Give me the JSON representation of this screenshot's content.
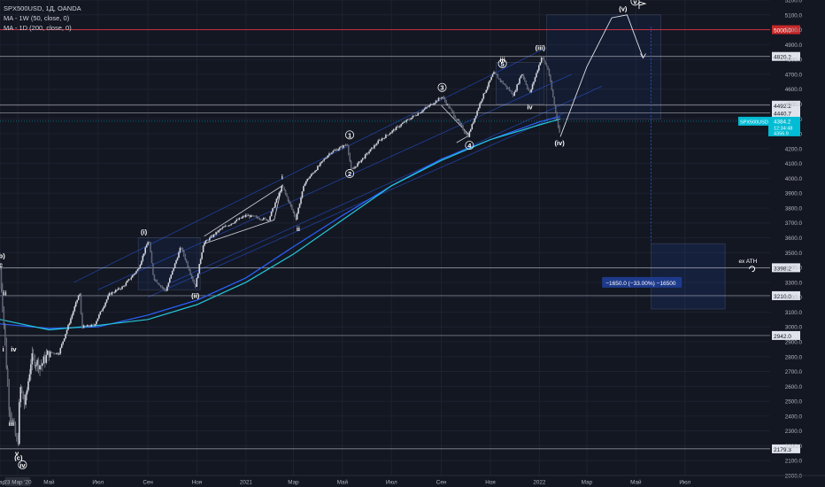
{
  "legend": {
    "symbol_line": "SPX500USD, 1Д, OANDA",
    "ma1": "MA - 1W (50, close, 0)",
    "ma2": "MA - 1D (200, close, 0)"
  },
  "colors": {
    "background": "#131722",
    "candle_up": "#d1d4dc",
    "candle_down": "#d1d4dc",
    "ma_weekly": "#2962ff",
    "ma_daily": "#26c6da",
    "channel": "#2962ff",
    "level": "#d1d4dc",
    "red_level": "#f23645",
    "price_tag": "#00bcd4",
    "text": "#d1d4dc"
  },
  "chart_data": {
    "type": "candlestick",
    "title": "SPX500USD, 1Д, OANDA",
    "x_axis": {
      "range": [
        "2020-03-01",
        "2022-10-15"
      ],
      "ticks": [
        {
          "date": "2020-03-01",
          "label": "Мар"
        },
        {
          "date": "2020-03-23",
          "label": "23 Мар '20"
        },
        {
          "date": "2020-05-01",
          "label": "Май"
        },
        {
          "date": "2020-07-01",
          "label": "Июл"
        },
        {
          "date": "2020-09-01",
          "label": "Сен"
        },
        {
          "date": "2020-11-01",
          "label": "Ноя"
        },
        {
          "date": "2021-01-01",
          "label": "2021"
        },
        {
          "date": "2021-03-01",
          "label": "Мар"
        },
        {
          "date": "2021-05-01",
          "label": "Май"
        },
        {
          "date": "2021-07-01",
          "label": "Июл"
        },
        {
          "date": "2021-09-01",
          "label": "Сен"
        },
        {
          "date": "2021-11-01",
          "label": "Ноя"
        },
        {
          "date": "2022-01-01",
          "label": "2022"
        },
        {
          "date": "2022-03-01",
          "label": "Мар"
        },
        {
          "date": "2022-05-01",
          "label": "Май"
        },
        {
          "date": "2022-07-01",
          "label": "Июл"
        }
      ]
    },
    "y_axis": {
      "range": [
        2000,
        5200
      ],
      "ticks": [
        2000,
        2100,
        2200,
        2300,
        2400,
        2500,
        2600,
        2700,
        2800,
        2900,
        3000,
        3100,
        3200,
        3300,
        3400,
        3500,
        3600,
        3700,
        3800,
        3900,
        4000,
        4100,
        4200,
        4300,
        4400,
        4500,
        4600,
        4700,
        4800,
        4900,
        5000,
        5100,
        5200
      ],
      "tick_labels": [
        "2000.0",
        "2100.0",
        "2200.0",
        "2300.0",
        "2400.0",
        "2500.0",
        "2600.0",
        "2700.0",
        "2800.0",
        "2900.0",
        "3000.0",
        "3100.0",
        "3200.0",
        "3300.0",
        "3400.0",
        "3500.0",
        "3600.0",
        "3700.0",
        "3800.0",
        "3900.0",
        "4000.0",
        "4100.0",
        "4200.0",
        "4300.0",
        "4400.0",
        "4500.0",
        "4600.0",
        "4700.0",
        "4800.0",
        "4900.0",
        "5000.0",
        "5100.0",
        "5200.0"
      ]
    },
    "price_path": [
      [
        "2020-03-01",
        3390
      ],
      [
        "2020-03-05",
        3100
      ],
      [
        "2020-03-09",
        2740
      ],
      [
        "2020-03-12",
        2480
      ],
      [
        "2020-03-16",
        2380
      ],
      [
        "2020-03-23",
        2190
      ],
      [
        "2020-03-26",
        2600
      ],
      [
        "2020-04-01",
        2470
      ],
      [
        "2020-04-09",
        2790
      ],
      [
        "2020-04-21",
        2740
      ],
      [
        "2020-05-01",
        2830
      ],
      [
        "2020-05-13",
        2820
      ],
      [
        "2020-06-08",
        3230
      ],
      [
        "2020-06-11",
        3000
      ],
      [
        "2020-06-26",
        3010
      ],
      [
        "2020-07-15",
        3220
      ],
      [
        "2020-08-01",
        3270
      ],
      [
        "2020-08-20",
        3390
      ],
      [
        "2020-09-02",
        3590
      ],
      [
        "2020-09-08",
        3330
      ],
      [
        "2020-09-23",
        3240
      ],
      [
        "2020-10-12",
        3540
      ],
      [
        "2020-10-30",
        3270
      ],
      [
        "2020-11-09",
        3560
      ],
      [
        "2020-12-01",
        3660
      ],
      [
        "2021-01-01",
        3750
      ],
      [
        "2021-01-29",
        3720
      ],
      [
        "2021-02-15",
        3950
      ],
      [
        "2021-03-04",
        3730
      ],
      [
        "2021-03-15",
        3970
      ],
      [
        "2021-04-15",
        4170
      ],
      [
        "2021-05-07",
        4230
      ],
      [
        "2021-05-12",
        4050
      ],
      [
        "2021-06-15",
        4250
      ],
      [
        "2021-07-15",
        4370
      ],
      [
        "2021-08-15",
        4480
      ],
      [
        "2021-09-02",
        4550
      ],
      [
        "2021-10-04",
        4280
      ],
      [
        "2021-10-20",
        4520
      ],
      [
        "2021-11-05",
        4710
      ],
      [
        "2021-11-30",
        4560
      ],
      [
        "2021-12-10",
        4710
      ],
      [
        "2021-12-20",
        4570
      ],
      [
        "2022-01-04",
        4820
      ],
      [
        "2022-01-12",
        4730
      ],
      [
        "2022-01-20",
        4480
      ],
      [
        "2022-01-27",
        4280
      ]
    ],
    "ma_weekly_50": [
      [
        "2020-03-01",
        3020
      ],
      [
        "2020-05-01",
        2990
      ],
      [
        "2020-07-01",
        3000
      ],
      [
        "2020-09-01",
        3080
      ],
      [
        "2020-11-01",
        3180
      ],
      [
        "2021-01-01",
        3330
      ],
      [
        "2021-03-01",
        3540
      ],
      [
        "2021-05-01",
        3750
      ],
      [
        "2021-07-01",
        3950
      ],
      [
        "2021-09-01",
        4130
      ],
      [
        "2021-11-01",
        4260
      ],
      [
        "2022-01-01",
        4380
      ],
      [
        "2022-01-27",
        4415
      ]
    ],
    "ma_daily_200": [
      [
        "2020-03-01",
        3050
      ],
      [
        "2020-05-01",
        2980
      ],
      [
        "2020-07-01",
        3010
      ],
      [
        "2020-09-01",
        3050
      ],
      [
        "2020-11-01",
        3150
      ],
      [
        "2021-01-01",
        3300
      ],
      [
        "2021-03-01",
        3490
      ],
      [
        "2021-05-01",
        3720
      ],
      [
        "2021-07-01",
        3950
      ],
      [
        "2021-09-01",
        4120
      ],
      [
        "2021-11-01",
        4260
      ],
      [
        "2022-01-01",
        4360
      ],
      [
        "2022-01-27",
        4400
      ]
    ],
    "projection": [
      [
        "2022-01-27",
        4280
      ],
      [
        "2022-03-01",
        4750
      ],
      [
        "2022-04-01",
        5080
      ],
      [
        "2022-04-20",
        5100
      ],
      [
        "2022-05-10",
        4810
      ]
    ],
    "horizontal_levels": [
      {
        "price": 5000.0,
        "label": "5000.0",
        "style": "red"
      },
      {
        "price": 4820.2,
        "label": "4820.2",
        "style": "plain"
      },
      {
        "price": 4492.2,
        "label": "4492.2",
        "style": "plain"
      },
      {
        "price": 4440.7,
        "label": "4440.7",
        "style": "plain"
      },
      {
        "price": 3398.2,
        "label": "3398.2",
        "style": "plain"
      },
      {
        "price": 3210.0,
        "label": "3210.0",
        "style": "plain"
      },
      {
        "price": 2942.0,
        "label": "2942.0",
        "style": "plain"
      },
      {
        "price": 2179.3,
        "label": "2179.3",
        "style": "plain"
      }
    ],
    "current_price": {
      "symbol": "SPX500USD",
      "price": "4384.2",
      "countdown": "12:34:48",
      "sub": "4356.9"
    },
    "measure_box": {
      "label": "−1650.0 (−33.00%) −16500",
      "ath_label": "ex ATH",
      "from": 5050,
      "to": 3398.2
    },
    "wave_labels": [
      {
        "text": "(b)",
        "date": "2020-03-02",
        "price": 3470
      },
      {
        "text": "c",
        "date": "2020-03-02",
        "price": 3410
      },
      {
        "text": "ii",
        "date": "2020-03-07",
        "price": 3220
      },
      {
        "text": "i",
        "date": "2020-03-05",
        "price": 2840
      },
      {
        "text": "iv",
        "date": "2020-03-18",
        "price": 2840
      },
      {
        "text": "iii",
        "date": "2020-03-15",
        "price": 2340
      },
      {
        "text": "v",
        "date": "2020-03-22",
        "price": 2140
      },
      {
        "text": "(c)",
        "date": "2020-03-24",
        "price": 2110
      },
      {
        "text": "iv",
        "date": "2020-03-29",
        "price": 2060
      },
      {
        "text": "(i)",
        "date": "2020-08-27",
        "price": 3630
      },
      {
        "text": "(ii)",
        "date": "2020-10-30",
        "price": 3200
      },
      {
        "text": "i",
        "date": "2021-02-15",
        "price": 4000
      },
      {
        "text": "ii",
        "date": "2021-03-07",
        "price": 3650
      },
      {
        "text": "1",
        "date": "2021-05-10",
        "price": 4280
      },
      {
        "text": "2",
        "date": "2021-05-10",
        "price": 4020
      },
      {
        "text": "3",
        "date": "2021-09-02",
        "price": 4600
      },
      {
        "text": "4",
        "date": "2021-10-06",
        "price": 4210
      },
      {
        "text": "5",
        "date": "2021-11-16",
        "price": 4760
      },
      {
        "text": "iii",
        "date": "2021-11-16",
        "price": 4790
      },
      {
        "text": "iv",
        "date": "2021-12-20",
        "price": 4470
      },
      {
        "text": "(iii)",
        "date": "2022-01-02",
        "price": 4870
      },
      {
        "text": "(iv)",
        "date": "2022-01-26",
        "price": 4230
      },
      {
        "text": "(v)",
        "date": "2022-04-15",
        "price": 5130
      },
      {
        "text": "v",
        "date": "2022-04-30",
        "price": 5180
      }
    ]
  }
}
